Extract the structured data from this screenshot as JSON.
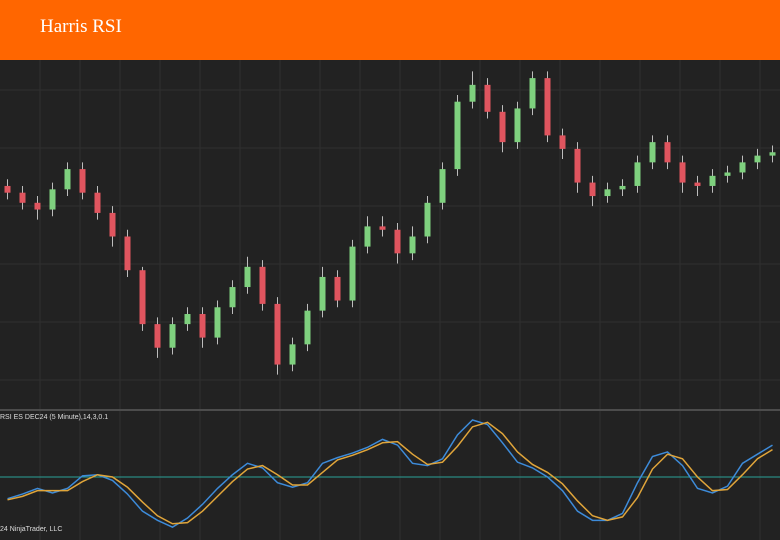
{
  "header": {
    "title": "Harris RSI"
  },
  "chart_data": [
    {
      "type": "candlestick",
      "up_color": "#7ed07e",
      "down_color": "#e0555f",
      "wick_color": "#bdbdbd",
      "ylim": [
        0,
        100
      ],
      "grid": true,
      "open": [
        65,
        63,
        60,
        58,
        64,
        70,
        63,
        57,
        50,
        40,
        24,
        17,
        24,
        27,
        20,
        29,
        35,
        41,
        30,
        12,
        18,
        28,
        38,
        31,
        47,
        53,
        52,
        45,
        50,
        60,
        70,
        90,
        95,
        87,
        78,
        88,
        97,
        80,
        76,
        66,
        62,
        64,
        65,
        72,
        78,
        72,
        66,
        65,
        68,
        69,
        72,
        74
      ],
      "high": [
        67,
        65,
        62,
        66,
        72,
        72,
        65,
        59,
        52,
        41,
        26,
        26,
        29,
        29,
        31,
        37,
        44,
        43,
        32,
        20,
        30,
        41,
        40,
        49,
        56,
        56,
        54,
        53,
        62,
        72,
        92,
        99,
        97,
        89,
        90,
        99,
        99,
        82,
        78,
        68,
        66,
        67,
        74,
        80,
        80,
        74,
        68,
        70,
        71,
        74,
        76,
        77
      ],
      "low": [
        61,
        58,
        55,
        56,
        62,
        61,
        55,
        47,
        38,
        22,
        14,
        15,
        22,
        17,
        18,
        27,
        33,
        28,
        9,
        10,
        16,
        26,
        29,
        29,
        45,
        50,
        42,
        43,
        48,
        58,
        68,
        88,
        85,
        75,
        76,
        86,
        78,
        73,
        63,
        59,
        60,
        62,
        63,
        70,
        70,
        63,
        62,
        63,
        66,
        67,
        70,
        72
      ],
      "close": [
        63,
        60,
        58,
        64,
        70,
        63,
        57,
        50,
        40,
        24,
        17,
        24,
        27,
        20,
        29,
        35,
        41,
        30,
        12,
        18,
        28,
        38,
        31,
        47,
        53,
        52,
        45,
        50,
        60,
        70,
        90,
        95,
        87,
        78,
        88,
        97,
        80,
        76,
        66,
        62,
        64,
        65,
        72,
        78,
        72,
        66,
        65,
        68,
        69,
        72,
        74,
        75
      ]
    },
    {
      "type": "line",
      "label": "RSI ES DEC24 (5 Minute),14,3,0.1",
      "footer": "24 NinjaTrader, LLC",
      "ylim": [
        0,
        100
      ],
      "levels": [
        50
      ],
      "level_color": "#2aa198",
      "grid": true,
      "series": [
        {
          "color": "#3d8bd9",
          "values": [
            31,
            35,
            40,
            36,
            40,
            51,
            52,
            47,
            35,
            20,
            12,
            6,
            14,
            26,
            40,
            52,
            62,
            58,
            45,
            41,
            45,
            62,
            67,
            71,
            76,
            83,
            78,
            62,
            60,
            66,
            87,
            100,
            96,
            80,
            63,
            58,
            50,
            38,
            20,
            12,
            12,
            18,
            45,
            68,
            72,
            60,
            40,
            36,
            42,
            62,
            70,
            78
          ]
        },
        {
          "color": "#e0a53a",
          "values": [
            30,
            33,
            38,
            38,
            38,
            46,
            52,
            50,
            41,
            28,
            16,
            9,
            10,
            20,
            33,
            46,
            57,
            60,
            52,
            43,
            43,
            54,
            65,
            69,
            74,
            80,
            81,
            70,
            61,
            63,
            77,
            94,
            98,
            88,
            72,
            61,
            54,
            44,
            29,
            16,
            12,
            15,
            32,
            57,
            70,
            66,
            50,
            38,
            39,
            52,
            66,
            74
          ]
        }
      ]
    }
  ]
}
